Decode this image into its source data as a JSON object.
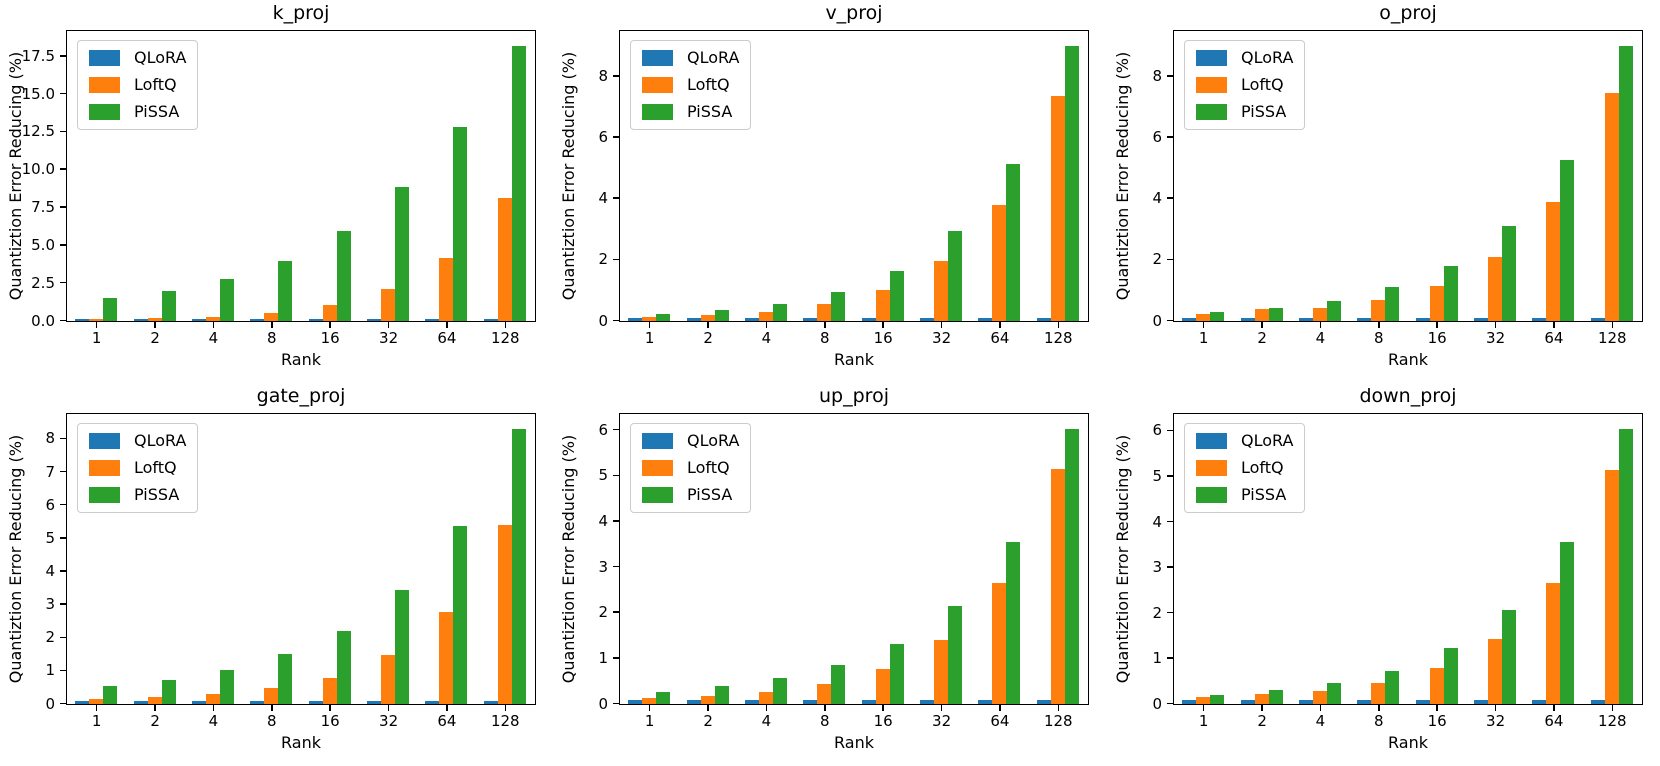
{
  "figure": {
    "xlabel": "Rank",
    "ylabel": "Quantiztion Error Reducing (%)",
    "categories": [
      "1",
      "2",
      "4",
      "8",
      "16",
      "32",
      "64",
      "128"
    ],
    "colors": {
      "qlora": "#1f77b4",
      "loftq": "#ff7f0e",
      "pissa": "#2ca02c"
    },
    "legend_labels": [
      "QLoRA",
      "LoftQ",
      "PiSSA"
    ]
  },
  "chart_data": [
    {
      "type": "bar",
      "title": "k_proj",
      "xlabel": "Rank",
      "ylabel": "Quantiztion Error Reducing (%)",
      "categories": [
        "1",
        "2",
        "4",
        "8",
        "16",
        "32",
        "64",
        "128"
      ],
      "ylim": [
        0,
        19.1
      ],
      "ytick_values": [
        0,
        2.5,
        5,
        7.5,
        10,
        12.5,
        15,
        17.5
      ],
      "ytick_labels": [
        "0.0",
        "2.5",
        "5.0",
        "7.5",
        "10.0",
        "12.5",
        "15.0",
        "17.5"
      ],
      "grid": false,
      "legend_position": "upper left",
      "series": [
        {
          "name": "QLoRA",
          "color": "#1f77b4",
          "values": [
            0.07,
            0.07,
            0.07,
            0.07,
            0.07,
            0.07,
            0.07,
            0.07
          ]
        },
        {
          "name": "LoftQ",
          "color": "#ff7f0e",
          "values": [
            0.1,
            0.18,
            0.3,
            0.55,
            1.05,
            2.15,
            4.2,
            8.15
          ]
        },
        {
          "name": "PiSSA",
          "color": "#2ca02c",
          "values": [
            1.5,
            2.0,
            2.8,
            4.0,
            5.95,
            8.85,
            12.8,
            18.2
          ]
        }
      ]
    },
    {
      "type": "bar",
      "title": "v_proj",
      "xlabel": "Rank",
      "ylabel": "Quantiztion Error Reducing (%)",
      "categories": [
        "1",
        "2",
        "4",
        "8",
        "16",
        "32",
        "64",
        "128"
      ],
      "ylim": [
        0,
        9.45
      ],
      "ytick_values": [
        0,
        2,
        4,
        6,
        8
      ],
      "ytick_labels": [
        "0",
        "2",
        "4",
        "6",
        "8"
      ],
      "grid": false,
      "legend_position": "upper left",
      "series": [
        {
          "name": "QLoRA",
          "color": "#1f77b4",
          "values": [
            0.09,
            0.09,
            0.09,
            0.09,
            0.09,
            0.09,
            0.09,
            0.09
          ]
        },
        {
          "name": "LoftQ",
          "color": "#ff7f0e",
          "values": [
            0.13,
            0.19,
            0.3,
            0.57,
            1.03,
            1.95,
            3.8,
            7.35
          ]
        },
        {
          "name": "PiSSA",
          "color": "#2ca02c",
          "values": [
            0.22,
            0.35,
            0.55,
            0.95,
            1.65,
            2.93,
            5.15,
            9.0
          ]
        }
      ]
    },
    {
      "type": "bar",
      "title": "o_proj",
      "xlabel": "Rank",
      "ylabel": "Quantiztion Error Reducing (%)",
      "categories": [
        "1",
        "2",
        "4",
        "8",
        "16",
        "32",
        "64",
        "128"
      ],
      "ylim": [
        0,
        9.45
      ],
      "ytick_values": [
        0,
        2,
        4,
        6,
        8
      ],
      "ytick_labels": [
        "0",
        "2",
        "4",
        "6",
        "8"
      ],
      "grid": false,
      "legend_position": "upper left",
      "series": [
        {
          "name": "QLoRA",
          "color": "#1f77b4",
          "values": [
            0.09,
            0.09,
            0.09,
            0.09,
            0.09,
            0.09,
            0.09,
            0.09
          ]
        },
        {
          "name": "LoftQ",
          "color": "#ff7f0e",
          "values": [
            0.24,
            0.38,
            0.44,
            0.7,
            1.15,
            2.1,
            3.9,
            7.45
          ]
        },
        {
          "name": "PiSSA",
          "color": "#2ca02c",
          "values": [
            0.3,
            0.44,
            0.67,
            1.1,
            1.8,
            3.1,
            5.27,
            9.0
          ]
        }
      ]
    },
    {
      "type": "bar",
      "title": "gate_proj",
      "xlabel": "Rank",
      "ylabel": "Quantiztion Error Reducing (%)",
      "categories": [
        "1",
        "2",
        "4",
        "8",
        "16",
        "32",
        "64",
        "128"
      ],
      "ylim": [
        0,
        8.72
      ],
      "ytick_values": [
        0,
        1,
        2,
        3,
        4,
        5,
        6,
        7,
        8
      ],
      "ytick_labels": [
        "0",
        "1",
        "2",
        "3",
        "4",
        "5",
        "6",
        "7",
        "8"
      ],
      "grid": false,
      "legend_position": "upper left",
      "series": [
        {
          "name": "QLoRA",
          "color": "#1f77b4",
          "values": [
            0.08,
            0.08,
            0.08,
            0.08,
            0.08,
            0.08,
            0.08,
            0.08
          ]
        },
        {
          "name": "LoftQ",
          "color": "#ff7f0e",
          "values": [
            0.14,
            0.2,
            0.29,
            0.48,
            0.8,
            1.48,
            2.78,
            5.4
          ]
        },
        {
          "name": "PiSSA",
          "color": "#2ca02c",
          "values": [
            0.55,
            0.73,
            1.03,
            1.5,
            2.2,
            3.45,
            5.37,
            8.3
          ]
        }
      ]
    },
    {
      "type": "bar",
      "title": "up_proj",
      "xlabel": "Rank",
      "ylabel": "Quantiztion Error Reducing (%)",
      "categories": [
        "1",
        "2",
        "4",
        "8",
        "16",
        "32",
        "64",
        "128"
      ],
      "ylim": [
        0,
        6.33
      ],
      "ytick_values": [
        0,
        1,
        2,
        3,
        4,
        5,
        6
      ],
      "ytick_labels": [
        "0",
        "1",
        "2",
        "3",
        "4",
        "5",
        "6"
      ],
      "grid": false,
      "legend_position": "upper left",
      "series": [
        {
          "name": "QLoRA",
          "color": "#1f77b4",
          "values": [
            0.09,
            0.09,
            0.09,
            0.09,
            0.09,
            0.09,
            0.09,
            0.09
          ]
        },
        {
          "name": "LoftQ",
          "color": "#ff7f0e",
          "values": [
            0.13,
            0.17,
            0.26,
            0.43,
            0.76,
            1.4,
            2.65,
            5.15
          ]
        },
        {
          "name": "PiSSA",
          "color": "#2ca02c",
          "values": [
            0.27,
            0.39,
            0.56,
            0.85,
            1.32,
            2.15,
            3.55,
            6.03
          ]
        }
      ]
    },
    {
      "type": "bar",
      "title": "down_proj",
      "xlabel": "Rank",
      "ylabel": "Quantiztion Error Reducing (%)",
      "categories": [
        "1",
        "2",
        "4",
        "8",
        "16",
        "32",
        "64",
        "128"
      ],
      "ylim": [
        0,
        6.35
      ],
      "ytick_values": [
        0,
        1,
        2,
        3,
        4,
        5,
        6
      ],
      "ytick_labels": [
        "0",
        "1",
        "2",
        "3",
        "4",
        "5",
        "6"
      ],
      "grid": false,
      "legend_position": "upper left",
      "series": [
        {
          "name": "QLoRA",
          "color": "#1f77b4",
          "values": [
            0.09,
            0.09,
            0.09,
            0.09,
            0.09,
            0.09,
            0.09,
            0.09
          ]
        },
        {
          "name": "LoftQ",
          "color": "#ff7f0e",
          "values": [
            0.16,
            0.21,
            0.29,
            0.46,
            0.79,
            1.43,
            2.65,
            5.15
          ]
        },
        {
          "name": "PiSSA",
          "color": "#2ca02c",
          "values": [
            0.19,
            0.3,
            0.46,
            0.73,
            1.24,
            2.07,
            3.55,
            6.05
          ]
        }
      ]
    }
  ]
}
